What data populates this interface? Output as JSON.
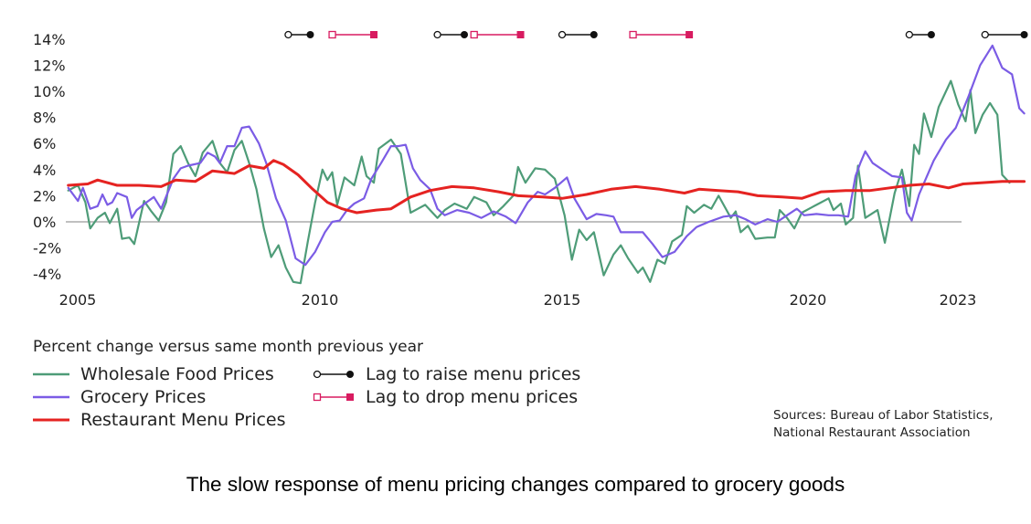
{
  "chart_data": {
    "type": "line",
    "ylim": [
      -5,
      14.5
    ],
    "xlim": [
      2005,
      2023
    ],
    "yticks": [
      14,
      12,
      10,
      8,
      6,
      4,
      2,
      0,
      -2,
      -4
    ],
    "ytick_labels": [
      "14%",
      "12%",
      "10%",
      "8%",
      "6%",
      "4%",
      "2%",
      "0%",
      "-2%",
      "-4%"
    ],
    "xticks": [
      2005,
      2010,
      2015,
      2020,
      2023
    ],
    "xtick_labels": [
      "2005",
      "2010",
      "2015",
      "2020",
      "2023"
    ],
    "legend_title": "Percent change versus same month previous year",
    "series": [
      {
        "name": "Wholesale Food Prices",
        "color": "#4e9c78",
        "points": [
          [
            2004.9,
            2.4
          ],
          [
            2005.1,
            2.8
          ],
          [
            2005.25,
            1.5
          ],
          [
            2005.35,
            -0.5
          ],
          [
            2005.5,
            0.3
          ],
          [
            2005.65,
            0.7
          ],
          [
            2005.75,
            -0.1
          ],
          [
            2005.9,
            1.0
          ],
          [
            2006.0,
            -1.3
          ],
          [
            2006.15,
            -1.2
          ],
          [
            2006.25,
            -1.7
          ],
          [
            2006.45,
            1.6
          ],
          [
            2006.6,
            0.8
          ],
          [
            2006.75,
            0.1
          ],
          [
            2006.9,
            1.5
          ],
          [
            2007.05,
            5.2
          ],
          [
            2007.2,
            5.8
          ],
          [
            2007.35,
            4.5
          ],
          [
            2007.5,
            3.5
          ],
          [
            2007.65,
            5.3
          ],
          [
            2007.85,
            6.2
          ],
          [
            2008.0,
            4.5
          ],
          [
            2008.15,
            3.8
          ],
          [
            2008.3,
            5.5
          ],
          [
            2008.45,
            6.2
          ],
          [
            2008.6,
            4.5
          ],
          [
            2008.75,
            2.5
          ],
          [
            2008.9,
            -0.5
          ],
          [
            2009.05,
            -2.7
          ],
          [
            2009.2,
            -1.8
          ],
          [
            2009.35,
            -3.5
          ],
          [
            2009.5,
            -4.6
          ],
          [
            2009.65,
            -4.7
          ],
          [
            2009.8,
            -1.5
          ],
          [
            2009.95,
            1.5
          ],
          [
            2010.1,
            4.0
          ],
          [
            2010.2,
            3.2
          ],
          [
            2010.3,
            3.8
          ],
          [
            2010.4,
            1.3
          ],
          [
            2010.55,
            3.4
          ],
          [
            2010.75,
            2.8
          ],
          [
            2010.9,
            5.0
          ],
          [
            2011.0,
            3.5
          ],
          [
            2011.15,
            3.0
          ],
          [
            2011.25,
            5.6
          ],
          [
            2011.5,
            6.3
          ],
          [
            2011.7,
            5.2
          ],
          [
            2011.9,
            0.7
          ],
          [
            2012.05,
            1.0
          ],
          [
            2012.2,
            1.3
          ],
          [
            2012.45,
            0.3
          ],
          [
            2012.6,
            0.9
          ],
          [
            2012.8,
            1.4
          ],
          [
            2013.05,
            1.0
          ],
          [
            2013.2,
            1.9
          ],
          [
            2013.45,
            1.5
          ],
          [
            2013.6,
            0.5
          ],
          [
            2013.8,
            1.2
          ],
          [
            2014.0,
            2.0
          ],
          [
            2014.1,
            4.2
          ],
          [
            2014.25,
            3.0
          ],
          [
            2014.45,
            4.1
          ],
          [
            2014.65,
            4.0
          ],
          [
            2014.85,
            3.3
          ],
          [
            2015.05,
            0.5
          ],
          [
            2015.2,
            -2.9
          ],
          [
            2015.35,
            -0.6
          ],
          [
            2015.5,
            -1.4
          ],
          [
            2015.65,
            -0.8
          ],
          [
            2015.85,
            -4.1
          ],
          [
            2016.05,
            -2.5
          ],
          [
            2016.2,
            -1.8
          ],
          [
            2016.35,
            -2.8
          ],
          [
            2016.55,
            -3.9
          ],
          [
            2016.65,
            -3.5
          ],
          [
            2016.8,
            -4.6
          ],
          [
            2016.95,
            -2.9
          ],
          [
            2017.1,
            -3.2
          ],
          [
            2017.25,
            -1.5
          ],
          [
            2017.45,
            -1.0
          ],
          [
            2017.55,
            1.2
          ],
          [
            2017.7,
            0.7
          ],
          [
            2017.9,
            1.3
          ],
          [
            2018.05,
            1.0
          ],
          [
            2018.2,
            2.0
          ],
          [
            2018.45,
            0.3
          ],
          [
            2018.55,
            0.8
          ],
          [
            2018.65,
            -0.8
          ],
          [
            2018.8,
            -0.3
          ],
          [
            2018.95,
            -1.3
          ],
          [
            2019.2,
            -1.2
          ],
          [
            2019.35,
            -1.2
          ],
          [
            2019.45,
            0.9
          ],
          [
            2019.6,
            0.3
          ],
          [
            2019.75,
            -0.5
          ],
          [
            2019.9,
            0.7
          ],
          [
            2020.1,
            1.1
          ],
          [
            2020.25,
            1.4
          ],
          [
            2020.45,
            1.8
          ],
          [
            2020.55,
            0.9
          ],
          [
            2020.7,
            1.4
          ],
          [
            2020.8,
            -0.2
          ],
          [
            2020.95,
            0.3
          ],
          [
            2021.05,
            4.3
          ],
          [
            2021.2,
            0.3
          ],
          [
            2021.45,
            0.9
          ],
          [
            2021.6,
            -1.6
          ],
          [
            2021.8,
            2.2
          ],
          [
            2021.95,
            4.0
          ],
          [
            2022.1,
            1.2
          ],
          [
            2022.2,
            5.9
          ],
          [
            2022.3,
            5.2
          ],
          [
            2022.4,
            8.3
          ],
          [
            2022.55,
            6.5
          ],
          [
            2022.7,
            8.8
          ],
          [
            2022.85,
            10.0
          ],
          [
            2022.95,
            10.8
          ],
          [
            2023.1,
            9.0
          ],
          [
            2023.25,
            7.7
          ],
          [
            2023.35,
            10.1
          ],
          [
            2023.45,
            6.8
          ],
          [
            2023.6,
            8.2
          ],
          [
            2023.75,
            9.1
          ],
          [
            2023.9,
            8.2
          ],
          [
            2024.0,
            3.6
          ],
          [
            2024.15,
            3.0
          ]
        ]
      },
      {
        "name": "Grocery Prices",
        "color": "#7b5ce5",
        "points": [
          [
            2004.9,
            2.6
          ],
          [
            2005.1,
            1.6
          ],
          [
            2005.2,
            2.6
          ],
          [
            2005.35,
            1.0
          ],
          [
            2005.5,
            1.2
          ],
          [
            2005.6,
            2.1
          ],
          [
            2005.7,
            1.3
          ],
          [
            2005.8,
            1.5
          ],
          [
            2005.9,
            2.2
          ],
          [
            2006.1,
            1.9
          ],
          [
            2006.2,
            0.3
          ],
          [
            2006.3,
            0.9
          ],
          [
            2006.5,
            1.5
          ],
          [
            2006.65,
            1.9
          ],
          [
            2006.8,
            1.0
          ],
          [
            2007.05,
            3.3
          ],
          [
            2007.2,
            4.1
          ],
          [
            2007.35,
            4.3
          ],
          [
            2007.6,
            4.5
          ],
          [
            2007.75,
            5.3
          ],
          [
            2007.9,
            5.0
          ],
          [
            2008.0,
            4.5
          ],
          [
            2008.15,
            5.8
          ],
          [
            2008.3,
            5.8
          ],
          [
            2008.45,
            7.2
          ],
          [
            2008.6,
            7.3
          ],
          [
            2008.8,
            6.0
          ],
          [
            2008.95,
            4.5
          ],
          [
            2009.15,
            1.8
          ],
          [
            2009.35,
            0.1
          ],
          [
            2009.55,
            -2.8
          ],
          [
            2009.75,
            -3.3
          ],
          [
            2009.95,
            -2.3
          ],
          [
            2010.15,
            -0.8
          ],
          [
            2010.3,
            0.0
          ],
          [
            2010.45,
            0.1
          ],
          [
            2010.6,
            0.9
          ],
          [
            2010.75,
            1.4
          ],
          [
            2010.95,
            1.8
          ],
          [
            2011.1,
            3.3
          ],
          [
            2011.3,
            4.5
          ],
          [
            2011.5,
            5.8
          ],
          [
            2011.65,
            5.8
          ],
          [
            2011.8,
            5.9
          ],
          [
            2011.95,
            4.1
          ],
          [
            2012.1,
            3.2
          ],
          [
            2012.3,
            2.5
          ],
          [
            2012.45,
            1.0
          ],
          [
            2012.6,
            0.5
          ],
          [
            2012.85,
            0.9
          ],
          [
            2013.1,
            0.7
          ],
          [
            2013.35,
            0.3
          ],
          [
            2013.6,
            0.8
          ],
          [
            2013.85,
            0.4
          ],
          [
            2014.05,
            -0.1
          ],
          [
            2014.3,
            1.5
          ],
          [
            2014.5,
            2.3
          ],
          [
            2014.65,
            2.1
          ],
          [
            2014.85,
            2.6
          ],
          [
            2015.1,
            3.4
          ],
          [
            2015.25,
            1.8
          ],
          [
            2015.5,
            0.2
          ],
          [
            2015.7,
            0.6
          ],
          [
            2015.9,
            0.5
          ],
          [
            2016.05,
            0.4
          ],
          [
            2016.2,
            -0.8
          ],
          [
            2016.4,
            -0.8
          ],
          [
            2016.65,
            -0.8
          ],
          [
            2016.85,
            -1.7
          ],
          [
            2017.05,
            -2.7
          ],
          [
            2017.3,
            -2.3
          ],
          [
            2017.55,
            -1.1
          ],
          [
            2017.75,
            -0.4
          ],
          [
            2018.0,
            0.0
          ],
          [
            2018.3,
            0.4
          ],
          [
            2018.55,
            0.5
          ],
          [
            2018.75,
            0.2
          ],
          [
            2018.95,
            -0.2
          ],
          [
            2019.2,
            0.2
          ],
          [
            2019.4,
            0.0
          ],
          [
            2019.6,
            0.5
          ],
          [
            2019.8,
            1.0
          ],
          [
            2019.95,
            0.5
          ],
          [
            2020.2,
            0.6
          ],
          [
            2020.45,
            0.5
          ],
          [
            2020.65,
            0.5
          ],
          [
            2020.85,
            0.4
          ],
          [
            2021.0,
            3.5
          ],
          [
            2021.1,
            4.5
          ],
          [
            2021.2,
            5.4
          ],
          [
            2021.35,
            4.5
          ],
          [
            2021.55,
            4.0
          ],
          [
            2021.75,
            3.5
          ],
          [
            2021.95,
            3.4
          ],
          [
            2022.05,
            0.7
          ],
          [
            2022.15,
            0.1
          ],
          [
            2022.3,
            2.1
          ],
          [
            2022.6,
            4.7
          ],
          [
            2022.85,
            6.3
          ],
          [
            2023.05,
            7.2
          ],
          [
            2023.3,
            9.5
          ],
          [
            2023.55,
            12.0
          ],
          [
            2023.8,
            13.5
          ],
          [
            2024.0,
            11.8
          ],
          [
            2024.2,
            11.3
          ],
          [
            2024.35,
            8.7
          ],
          [
            2024.45,
            8.3
          ]
        ]
      },
      {
        "name": "Restaurant Menu Prices",
        "color": "#e52321",
        "points": [
          [
            2004.9,
            2.8
          ],
          [
            2005.3,
            2.9
          ],
          [
            2005.5,
            3.2
          ],
          [
            2005.9,
            2.8
          ],
          [
            2006.35,
            2.8
          ],
          [
            2006.8,
            2.7
          ],
          [
            2007.1,
            3.2
          ],
          [
            2007.5,
            3.1
          ],
          [
            2007.85,
            3.9
          ],
          [
            2008.3,
            3.7
          ],
          [
            2008.6,
            4.3
          ],
          [
            2008.9,
            4.1
          ],
          [
            2009.1,
            4.7
          ],
          [
            2009.3,
            4.4
          ],
          [
            2009.6,
            3.6
          ],
          [
            2009.9,
            2.5
          ],
          [
            2010.2,
            1.5
          ],
          [
            2010.5,
            1.0
          ],
          [
            2010.8,
            0.7
          ],
          [
            2011.2,
            0.9
          ],
          [
            2011.5,
            1.0
          ],
          [
            2011.9,
            1.9
          ],
          [
            2012.3,
            2.4
          ],
          [
            2012.75,
            2.7
          ],
          [
            2013.2,
            2.6
          ],
          [
            2013.7,
            2.3
          ],
          [
            2014.1,
            2.0
          ],
          [
            2014.6,
            1.9
          ],
          [
            2015.0,
            1.8
          ],
          [
            2015.5,
            2.1
          ],
          [
            2016.0,
            2.5
          ],
          [
            2016.5,
            2.7
          ],
          [
            2017.0,
            2.5
          ],
          [
            2017.5,
            2.2
          ],
          [
            2017.8,
            2.5
          ],
          [
            2018.2,
            2.4
          ],
          [
            2018.6,
            2.3
          ],
          [
            2019.0,
            2.0
          ],
          [
            2019.5,
            1.9
          ],
          [
            2019.9,
            1.8
          ],
          [
            2020.3,
            2.3
          ],
          [
            2020.8,
            2.4
          ],
          [
            2021.3,
            2.4
          ],
          [
            2021.7,
            2.6
          ],
          [
            2022.1,
            2.8
          ],
          [
            2022.5,
            2.9
          ],
          [
            2022.9,
            2.6
          ],
          [
            2023.2,
            2.9
          ],
          [
            2023.6,
            3.0
          ],
          [
            2024.0,
            3.1
          ],
          [
            2024.45,
            3.1
          ]
        ]
      }
    ]
  },
  "lag_markers": {
    "raise": {
      "label": "Lag to raise menu prices",
      "color": "#111111",
      "spans": [
        [
          2009.4,
          2009.85
        ],
        [
          2012.45,
          2013.0
        ],
        [
          2015.0,
          2015.65
        ],
        [
          2022.1,
          2022.55
        ],
        [
          2023.65,
          2024.45
        ]
      ]
    },
    "drop": {
      "label": "Lag to drop menu prices",
      "color": "#d81b60",
      "spans": [
        [
          2010.3,
          2011.15
        ],
        [
          2013.2,
          2014.15
        ],
        [
          2016.45,
          2017.6
        ]
      ]
    }
  },
  "sources_line1": "Sources: Bureau of Labor Statistics,",
  "sources_line2": "National Restaurant Association",
  "caption": "The slow response of menu pricing changes compared to grocery goods"
}
